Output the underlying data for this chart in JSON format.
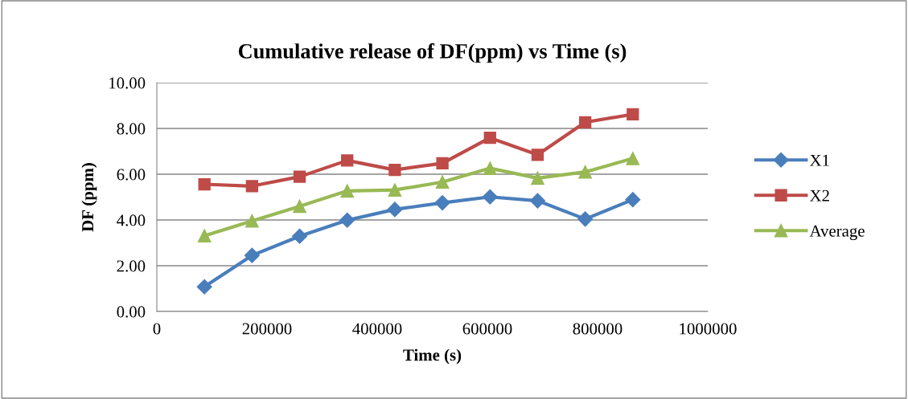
{
  "chart_data": {
    "type": "line",
    "title": "Cumulative release of DF(ppm) vs Time (s)",
    "xlabel": "Time (s)",
    "ylabel": "DF (ppm)",
    "x": [
      86400,
      172800,
      259200,
      345600,
      432000,
      518400,
      604800,
      691200,
      777600,
      864000
    ],
    "series": [
      {
        "name": "X1",
        "color": "#4a7ebb",
        "marker": "diamond",
        "values": [
          1.08,
          2.45,
          3.29,
          3.99,
          4.46,
          4.75,
          5.01,
          4.84,
          4.04,
          4.89
        ]
      },
      {
        "name": "X2",
        "color": "#be4b48",
        "marker": "square",
        "values": [
          5.56,
          5.48,
          5.89,
          6.6,
          6.19,
          6.48,
          7.59,
          6.85,
          8.27,
          8.62
        ]
      },
      {
        "name": "Average",
        "color": "#98b954",
        "marker": "triangle",
        "values": [
          3.31,
          3.96,
          4.6,
          5.27,
          5.31,
          5.66,
          6.26,
          5.83,
          6.1,
          6.69
        ]
      }
    ],
    "xlim": [
      0,
      1000000
    ],
    "xticks": [
      0,
      200000,
      400000,
      600000,
      800000,
      1000000
    ],
    "ylim": [
      0,
      10
    ],
    "yticks": [
      {
        "value": 0,
        "label": "0.00"
      },
      {
        "value": 2,
        "label": "2.00"
      },
      {
        "value": 4,
        "label": "4.00"
      },
      {
        "value": 6,
        "label": "6.00"
      },
      {
        "value": 8,
        "label": "8.00"
      },
      {
        "value": 10,
        "label": "10.00"
      }
    ],
    "grid": "y",
    "legend": "right"
  }
}
